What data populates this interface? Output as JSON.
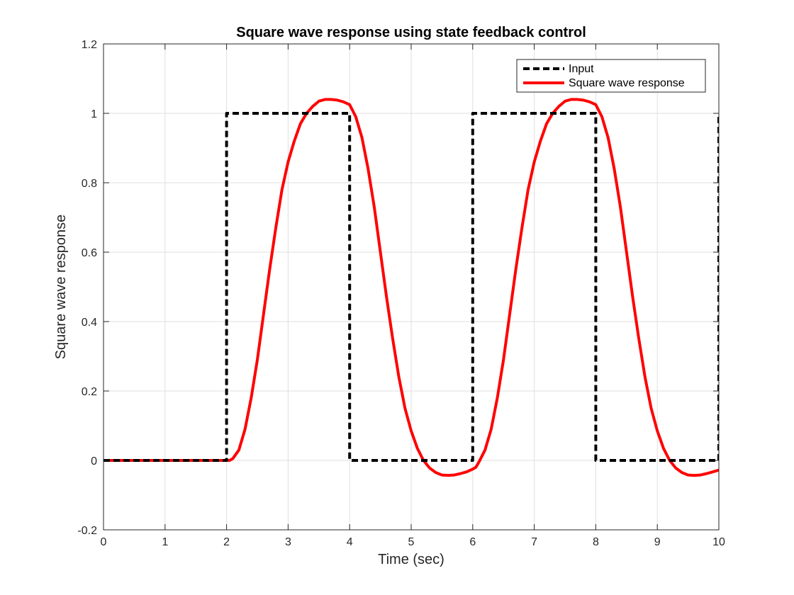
{
  "chart_data": {
    "type": "line",
    "title": "Square wave response using state feedback control",
    "xlabel": "Time (sec)",
    "ylabel": "Square wave response",
    "xlim": [
      0,
      10
    ],
    "ylim": [
      -0.2,
      1.2
    ],
    "xticks": [
      0,
      1,
      2,
      3,
      4,
      5,
      6,
      7,
      8,
      9,
      10
    ],
    "xtick_labels": [
      "0",
      "1",
      "2",
      "3",
      "4",
      "5",
      "6",
      "7",
      "8",
      "9",
      "10"
    ],
    "yticks": [
      -0.2,
      0,
      0.2,
      0.4,
      0.6,
      0.8,
      1,
      1.2
    ],
    "ytick_labels": [
      "-0.2",
      "0",
      "0.2",
      "0.4",
      "0.6",
      "0.8",
      "1",
      "1.2"
    ],
    "grid": true,
    "legend_position": "top-right",
    "series": [
      {
        "name": "Input",
        "color": "#000000",
        "style": "dashed",
        "x": [
          0,
          2,
          2,
          4,
          4,
          6,
          6,
          8,
          8,
          10,
          10
        ],
        "y": [
          0,
          0,
          1,
          1,
          0,
          0,
          1,
          1,
          0,
          0,
          1
        ]
      },
      {
        "name": "Square wave response",
        "color": "#ff0000",
        "style": "solid",
        "x": [
          0,
          2.0,
          2.05,
          2.1,
          2.2,
          2.3,
          2.4,
          2.5,
          2.6,
          2.7,
          2.8,
          2.9,
          3.0,
          3.1,
          3.2,
          3.3,
          3.4,
          3.5,
          3.6,
          3.7,
          3.8,
          3.9,
          4.0,
          4.1,
          4.2,
          4.3,
          4.4,
          4.5,
          4.6,
          4.7,
          4.8,
          4.9,
          5.0,
          5.1,
          5.2,
          5.3,
          5.4,
          5.5,
          5.6,
          5.7,
          5.8,
          5.9,
          6.0,
          6.05,
          6.1,
          6.2,
          6.3,
          6.4,
          6.5,
          6.6,
          6.7,
          6.8,
          6.9,
          7.0,
          7.1,
          7.2,
          7.3,
          7.4,
          7.5,
          7.6,
          7.7,
          7.8,
          7.9,
          8.0,
          8.1,
          8.2,
          8.3,
          8.4,
          8.5,
          8.6,
          8.7,
          8.8,
          8.9,
          9.0,
          9.1,
          9.2,
          9.3,
          9.4,
          9.5,
          9.6,
          9.7,
          9.8,
          9.9,
          10.0
        ],
        "y": [
          0,
          0,
          0.0,
          0.005,
          0.03,
          0.09,
          0.18,
          0.29,
          0.42,
          0.55,
          0.67,
          0.78,
          0.86,
          0.92,
          0.97,
          1.0,
          1.02,
          1.035,
          1.04,
          1.04,
          1.038,
          1.033,
          1.025,
          0.99,
          0.93,
          0.84,
          0.73,
          0.6,
          0.47,
          0.35,
          0.24,
          0.15,
          0.085,
          0.035,
          0.0,
          -0.022,
          -0.035,
          -0.042,
          -0.043,
          -0.042,
          -0.038,
          -0.033,
          -0.025,
          -0.02,
          -0.005,
          0.03,
          0.09,
          0.18,
          0.29,
          0.42,
          0.55,
          0.67,
          0.78,
          0.86,
          0.92,
          0.97,
          1.0,
          1.02,
          1.035,
          1.04,
          1.04,
          1.038,
          1.033,
          1.025,
          0.99,
          0.93,
          0.84,
          0.73,
          0.6,
          0.47,
          0.35,
          0.24,
          0.15,
          0.085,
          0.035,
          0.0,
          -0.022,
          -0.035,
          -0.042,
          -0.043,
          -0.042,
          -0.038,
          -0.033,
          -0.028
        ]
      }
    ]
  }
}
